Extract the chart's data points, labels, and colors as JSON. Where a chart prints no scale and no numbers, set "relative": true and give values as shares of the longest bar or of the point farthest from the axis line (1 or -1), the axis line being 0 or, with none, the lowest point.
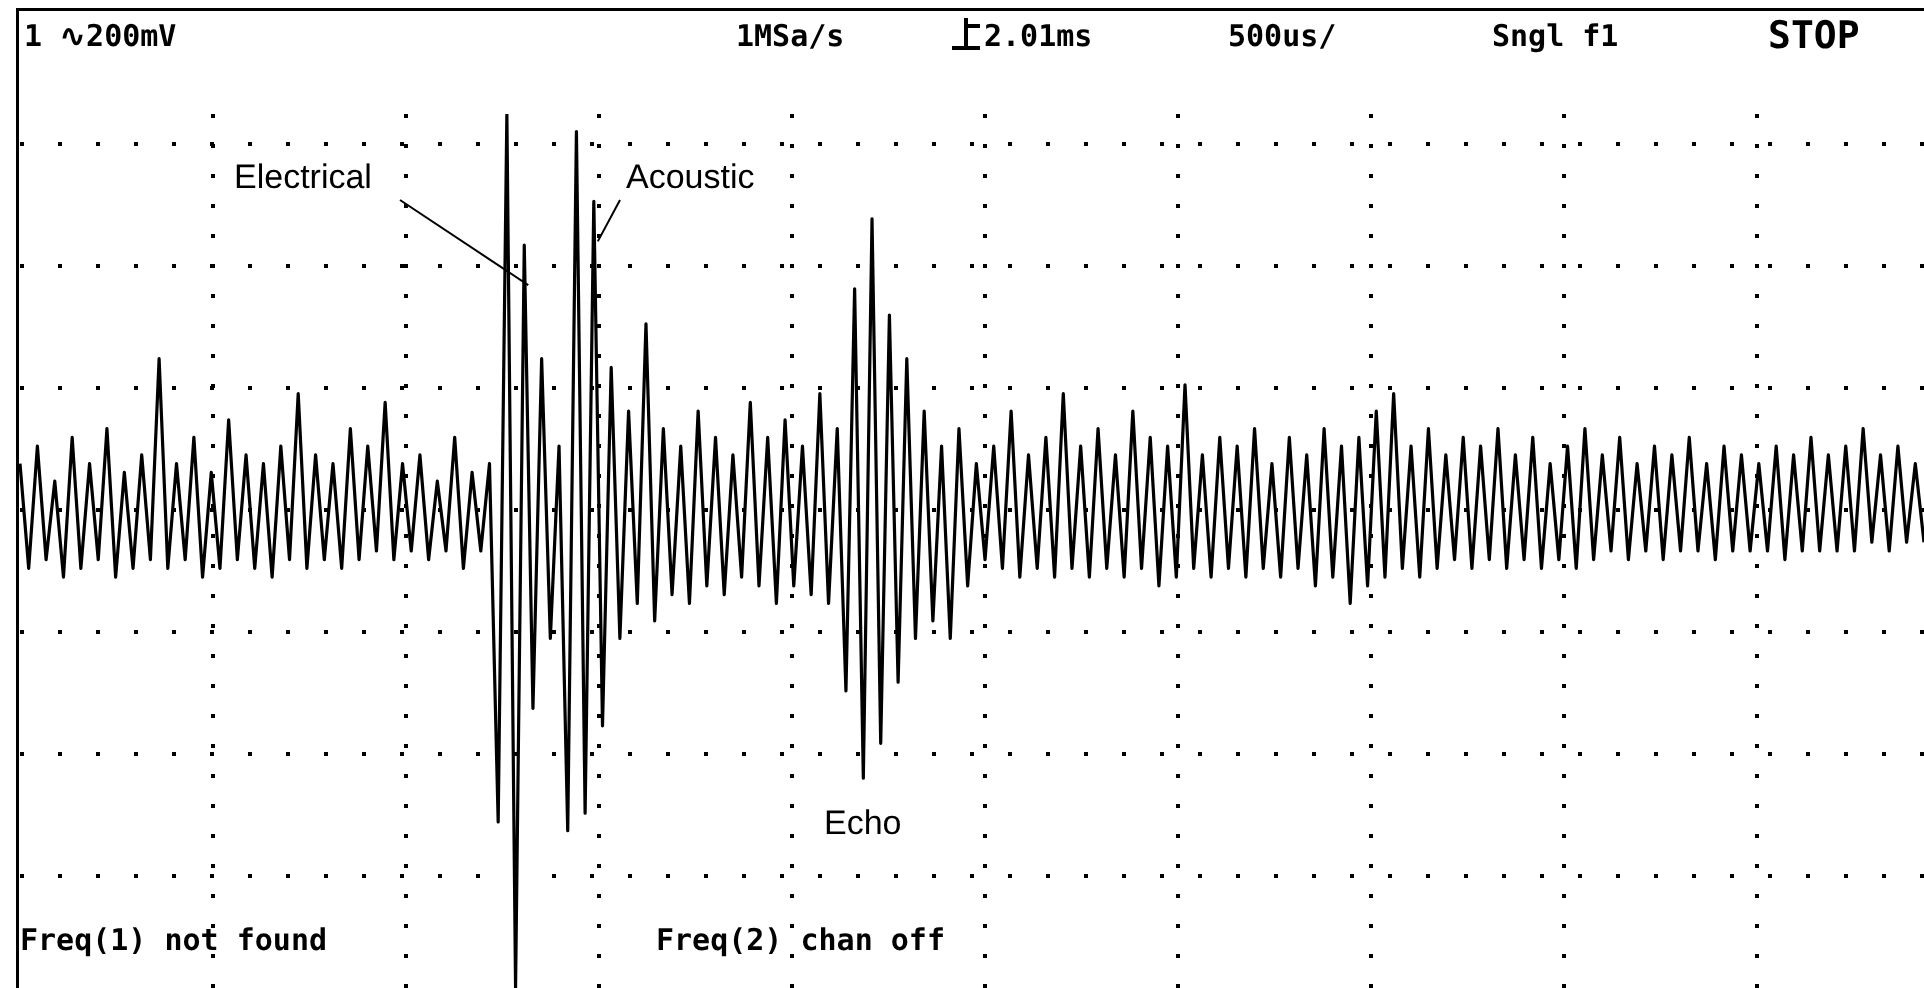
{
  "chart_data": {
    "type": "line",
    "relative": true,
    "grid": true,
    "legend": false,
    "marker": "none",
    "line_style": "solid",
    "categories": [
      null,
      null,
      null,
      null,
      null,
      null,
      null,
      null,
      null,
      null,
      null,
      null,
      null,
      null,
      null,
      null,
      null,
      null,
      null,
      null,
      null,
      null,
      null,
      null,
      null,
      null,
      null,
      null,
      null,
      null,
      null,
      null,
      null,
      null,
      null,
      null,
      null,
      null,
      null,
      null,
      null,
      null,
      null,
      null,
      null,
      null,
      null,
      null,
      null,
      null,
      null,
      null,
      null,
      null,
      null,
      null,
      null,
      null,
      null,
      null,
      null,
      null,
      null,
      null,
      null,
      null,
      null,
      null,
      null,
      null,
      null,
      null,
      null,
      null,
      null,
      null,
      null,
      null,
      null,
      null,
      null,
      null,
      null,
      null,
      null,
      null,
      null,
      null,
      null,
      null,
      null,
      null,
      null,
      null,
      null,
      null,
      null,
      null,
      null,
      null,
      null,
      null,
      null,
      null,
      null,
      null,
      null,
      null,
      null,
      null,
      null,
      null,
      null,
      null,
      null,
      null,
      null,
      null,
      null,
      null,
      null,
      null,
      null,
      null,
      null,
      null,
      null,
      null,
      null,
      null,
      null,
      null,
      null,
      null,
      null,
      null,
      null,
      null,
      null,
      null,
      null,
      null,
      null,
      null,
      null,
      null,
      null,
      null,
      null,
      null,
      null,
      null,
      null,
      null,
      null,
      null,
      null,
      null,
      null,
      null,
      null,
      null,
      null,
      null,
      null,
      null,
      null,
      null,
      null,
      null,
      null,
      null,
      null,
      null,
      null,
      null,
      null,
      null,
      null,
      null,
      null,
      null,
      null,
      null,
      null,
      null,
      null,
      null,
      null,
      null,
      null,
      null,
      null,
      null,
      null,
      null,
      null,
      null,
      null,
      null,
      null,
      null,
      null,
      null,
      null,
      null,
      null,
      null,
      null,
      null,
      null,
      null,
      null,
      null,
      null,
      null,
      null,
      null,
      null,
      null
    ],
    "series": [
      {
        "color": "#000000",
        "values": [
          0.6,
          0.48,
          0.62,
          0.49,
          0.58,
          0.47,
          0.63,
          0.48,
          0.6,
          0.49,
          0.64,
          0.47,
          0.59,
          0.48,
          0.61,
          0.49,
          0.72,
          0.48,
          0.6,
          0.49,
          0.63,
          0.47,
          0.59,
          0.48,
          0.65,
          0.49,
          0.61,
          0.48,
          0.6,
          0.47,
          0.62,
          0.49,
          0.68,
          0.48,
          0.61,
          0.49,
          0.6,
          0.48,
          0.64,
          0.49,
          0.62,
          0.5,
          0.67,
          0.49,
          0.6,
          0.5,
          0.61,
          0.49,
          0.58,
          0.5,
          0.63,
          0.48,
          0.59,
          0.5,
          0.6,
          0.19,
          1.0,
          0.0,
          0.85,
          0.32,
          0.72,
          0.4,
          0.62,
          0.18,
          0.98,
          0.2,
          0.9,
          0.3,
          0.71,
          0.4,
          0.66,
          0.44,
          0.76,
          0.42,
          0.64,
          0.45,
          0.62,
          0.44,
          0.66,
          0.46,
          0.63,
          0.45,
          0.61,
          0.47,
          0.67,
          0.46,
          0.63,
          0.44,
          0.65,
          0.46,
          0.62,
          0.45,
          0.68,
          0.44,
          0.64,
          0.34,
          0.8,
          0.24,
          0.88,
          0.28,
          0.77,
          0.35,
          0.72,
          0.4,
          0.66,
          0.42,
          0.62,
          0.4,
          0.64,
          0.46,
          0.6,
          0.49,
          0.62,
          0.48,
          0.66,
          0.47,
          0.61,
          0.48,
          0.63,
          0.47,
          0.68,
          0.48,
          0.62,
          0.47,
          0.64,
          0.48,
          0.61,
          0.47,
          0.66,
          0.48,
          0.63,
          0.46,
          0.62,
          0.47,
          0.69,
          0.48,
          0.61,
          0.47,
          0.63,
          0.48,
          0.62,
          0.47,
          0.64,
          0.48,
          0.6,
          0.47,
          0.63,
          0.48,
          0.61,
          0.46,
          0.64,
          0.47,
          0.62,
          0.44,
          0.63,
          0.46,
          0.66,
          0.47,
          0.68,
          0.48,
          0.62,
          0.47,
          0.64,
          0.48,
          0.61,
          0.49,
          0.63,
          0.48,
          0.62,
          0.49,
          0.64,
          0.48,
          0.61,
          0.49,
          0.63,
          0.48,
          0.6,
          0.49,
          0.62,
          0.48,
          0.64,
          0.49,
          0.61,
          0.5,
          0.63,
          0.49,
          0.6,
          0.5,
          0.62,
          0.49,
          0.61,
          0.5,
          0.63,
          0.5,
          0.6,
          0.49,
          0.62,
          0.5,
          0.61,
          0.5,
          0.6,
          0.5,
          0.62,
          0.49,
          0.61,
          0.5,
          0.63,
          0.5,
          0.61,
          0.5,
          0.62,
          0.5,
          0.64,
          0.51,
          0.61,
          0.5,
          0.62,
          0.51,
          0.6,
          0.51
        ]
      }
    ],
    "annotations": [
      "1 ∿200mV",
      "1MSa/s",
      "2.01ms",
      "500us/",
      "Sngl f1",
      "STOP",
      "Freq(1) not found",
      "Freq(2) chan off",
      "Electrical",
      "Acoustic",
      "Echo"
    ]
  }
}
